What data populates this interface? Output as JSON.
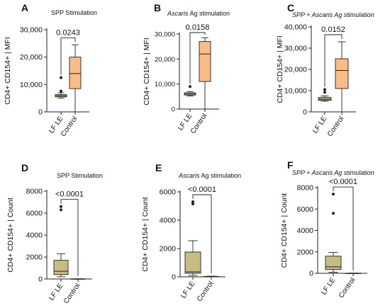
{
  "chart_data": [
    {
      "type": "box",
      "letter": "A",
      "title": "SPP Stimulation",
      "title_style": "normal",
      "ylabel": "CD4+ CD154+ | MFI",
      "ylim": [
        0,
        30000
      ],
      "yticks": [
        0,
        10000,
        20000,
        30000
      ],
      "ytick_labels": [
        "0",
        "10,000",
        "20,000",
        "30,000"
      ],
      "categories": [
        "LF LE",
        "Control"
      ],
      "boxes": [
        {
          "min": 5000,
          "q1": 5500,
          "median": 5900,
          "q3": 6300,
          "max": 7000,
          "outliers": [
            12500,
            7600
          ]
        },
        {
          "min": 0,
          "q1": 8500,
          "median": 14000,
          "q3": 20000,
          "max": 24500,
          "outliers": []
        }
      ],
      "pvalue": "0.0243"
    },
    {
      "type": "box",
      "letter": "B",
      "title": "Ascaris Ag stimulation",
      "title_parts": [
        {
          "text": "Ascaris",
          "italic": true
        },
        {
          "text": " Ag stimulation",
          "italic": false
        }
      ],
      "ylabel": "CD4+ CD154+ | MFI",
      "ylim": [
        0,
        30000
      ],
      "yticks": [
        0,
        10000,
        20000,
        30000
      ],
      "ytick_labels": [
        "0",
        "10,000",
        "20,000",
        "30,000"
      ],
      "categories": [
        "LF LE",
        "Control"
      ],
      "boxes": [
        {
          "min": 5200,
          "q1": 5600,
          "median": 6000,
          "q3": 6500,
          "max": 7000,
          "outliers": [
            9000
          ]
        },
        {
          "min": 0,
          "q1": 11000,
          "median": 22000,
          "q3": 27000,
          "max": 28500,
          "outliers": []
        }
      ],
      "pvalue": "0.0158"
    },
    {
      "type": "box",
      "letter": "C",
      "title": "SPP + Ascaris Ag stimulation",
      "title_parts": [
        {
          "text": "SPP + Ascaris Ag stimulation",
          "italic": true
        }
      ],
      "ylabel": "CD4+ CD154+ | MFI",
      "ylim": [
        0,
        40000
      ],
      "yticks": [
        0,
        10000,
        20000,
        30000,
        40000
      ],
      "ytick_labels": [
        "0",
        "10,000",
        "20,000",
        "30,000",
        "40,000"
      ],
      "categories": [
        "LF LE",
        "Control"
      ],
      "boxes": [
        {
          "min": 5000,
          "q1": 5500,
          "median": 6000,
          "q3": 6800,
          "max": 7500,
          "outliers": [
            10500,
            9200
          ]
        },
        {
          "min": 0,
          "q1": 11000,
          "median": 19500,
          "q3": 25000,
          "max": 33000,
          "outliers": []
        }
      ],
      "pvalue": "0.0152"
    },
    {
      "type": "box",
      "letter": "D",
      "title": "SPP Stimulation",
      "title_style": "normal",
      "ylabel": "CD4+ CD154+ | Count",
      "ylim": [
        0,
        8000
      ],
      "yticks": [
        0,
        2000,
        4000,
        6000,
        8000
      ],
      "ytick_labels": [
        "0",
        "2000",
        "4000",
        "6000",
        "8000"
      ],
      "categories": [
        "LF LE",
        "Control"
      ],
      "boxes": [
        {
          "min": 200,
          "q1": 400,
          "median": 700,
          "q3": 1700,
          "max": 2300,
          "outliers": [
            6600,
            6300
          ]
        },
        {
          "min": 0,
          "q1": 0,
          "median": 0,
          "q3": 10,
          "max": 20,
          "outliers": []
        }
      ],
      "pvalue": "<0.0001"
    },
    {
      "type": "box",
      "letter": "E",
      "title": "Ascaris Ag stimulation",
      "title_parts": [
        {
          "text": "Ascaris",
          "italic": true
        },
        {
          "text": " Ag stimulation",
          "italic": false
        }
      ],
      "ylabel": "CD4+ CD154+ | Count",
      "ylim": [
        0,
        6000
      ],
      "yticks": [
        0,
        2000,
        4000,
        6000
      ],
      "ytick_labels": [
        "0",
        "2000",
        "4000",
        "6000"
      ],
      "categories": [
        "LF LE",
        "Control"
      ],
      "boxes": [
        {
          "min": 100,
          "q1": 250,
          "median": 350,
          "q3": 1750,
          "max": 2550,
          "outliers": [
            5300,
            5150
          ]
        },
        {
          "min": 0,
          "q1": 0,
          "median": 10,
          "q3": 30,
          "max": 50,
          "outliers": []
        }
      ],
      "pvalue": "<0.0001"
    },
    {
      "type": "box",
      "letter": "F",
      "title": "SPP + Ascaris Ag stimulation",
      "title_parts": [
        {
          "text": "SPP + Ascaris Ag stimulation",
          "italic": true
        }
      ],
      "ylabel": "CD4+ CD154+ | Count",
      "ylim": [
        0,
        8000
      ],
      "yticks": [
        0,
        2000,
        4000,
        6000,
        8000
      ],
      "ytick_labels": [
        "0",
        "2000",
        "4000",
        "6000",
        "8000"
      ],
      "categories": [
        "LF LE",
        "Control"
      ],
      "boxes": [
        {
          "min": 100,
          "q1": 350,
          "median": 600,
          "q3": 1600,
          "max": 1950,
          "outliers": [
            7400,
            5600
          ]
        },
        {
          "min": 0,
          "q1": 0,
          "median": 0,
          "q3": 10,
          "max": 20,
          "outliers": []
        }
      ],
      "pvalue": "<0.0001"
    }
  ],
  "colors": {
    "lf_le_box": "#c8bc84",
    "control_box": "#f9bc86",
    "axis": "#222222"
  }
}
